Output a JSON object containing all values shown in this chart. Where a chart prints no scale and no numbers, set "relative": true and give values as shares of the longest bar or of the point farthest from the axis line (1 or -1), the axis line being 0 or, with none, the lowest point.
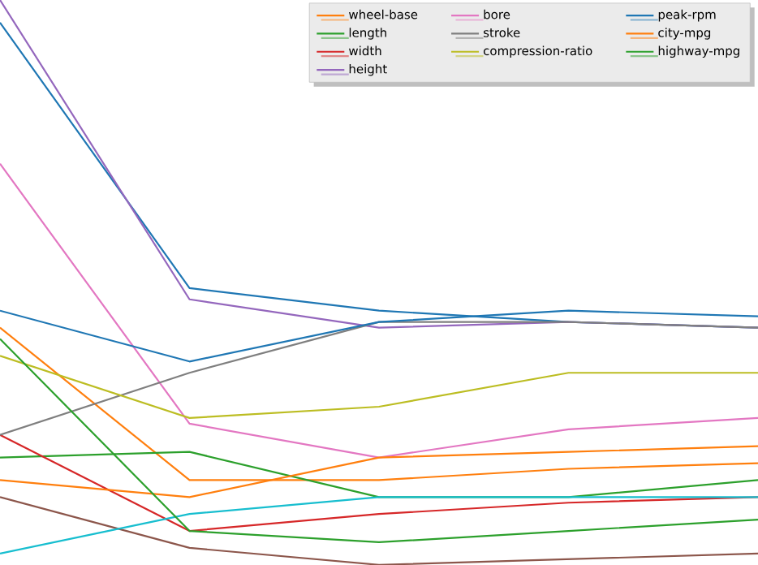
{
  "chart_data": {
    "type": "line",
    "relative": true,
    "legend": "top right",
    "categories": [
      null,
      null,
      null,
      null,
      null
    ],
    "series": [
      {
        "color": "#1f77b4",
        "values": [
          0.96,
          0.49,
          0.45,
          0.43,
          0.42
        ]
      },
      {
        "name": "wheel-base",
        "color": "#ff7f0e",
        "values": [
          0.42,
          0.15,
          0.15,
          0.17,
          0.18
        ]
      },
      {
        "name": "length",
        "color": "#2ca02c",
        "values": [
          0.19,
          0.2,
          0.12,
          0.12,
          0.15
        ]
      },
      {
        "name": "width",
        "color": "#d62728",
        "values": [
          0.23,
          0.06,
          0.09,
          0.11,
          0.12
        ]
      },
      {
        "name": "height",
        "color": "#9467bd",
        "values": [
          1,
          0.47,
          0.42,
          0.43,
          0.42
        ]
      },
      {
        "color": "#8c564b",
        "values": [
          0.12,
          0.03,
          0,
          0.01,
          0.02
        ]
      },
      {
        "name": "bore",
        "color": "#e377c2",
        "values": [
          0.71,
          0.25,
          0.19,
          0.24,
          0.26
        ]
      },
      {
        "name": "stroke",
        "color": "#7f7f7f",
        "values": [
          0.23,
          0.34,
          0.43,
          0.43,
          0.42
        ]
      },
      {
        "name": "compression-ratio",
        "color": "#bcbd22",
        "values": [
          0.37,
          0.26,
          0.28,
          0.34,
          0.34
        ]
      },
      {
        "color": "#17becf",
        "values": [
          0.02,
          0.09,
          0.12,
          0.12,
          0.12
        ]
      },
      {
        "name": "peak-rpm",
        "color": "#1f77b4",
        "values": [
          0.45,
          0.36,
          0.43,
          0.45,
          0.44
        ]
      },
      {
        "name": "city-mpg",
        "color": "#ff7f0e",
        "values": [
          0.15,
          0.12,
          0.19,
          0.2,
          0.21
        ]
      },
      {
        "name": "highway-mpg",
        "color": "#2ca02c",
        "values": [
          0.4,
          0.06,
          0.04,
          0.06,
          0.08
        ]
      }
    ]
  }
}
